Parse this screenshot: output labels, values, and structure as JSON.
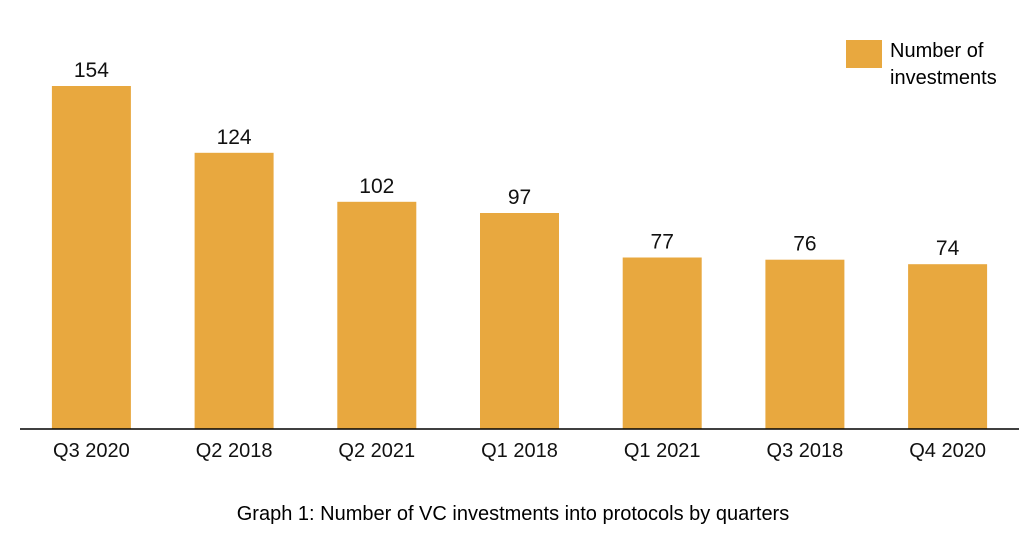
{
  "chart_data": {
    "type": "bar",
    "categories": [
      "Q3 2020",
      "Q2 2018",
      "Q2 2021",
      "Q1 2018",
      "Q1 2021",
      "Q3 2018",
      "Q4 2020"
    ],
    "series": [
      {
        "name": "Number of investments",
        "values": [
          154,
          124,
          102,
          97,
          77,
          76,
          74
        ]
      }
    ],
    "value_labels": [
      "154",
      "124",
      "102",
      "97",
      "77",
      "76",
      "74"
    ],
    "title": "",
    "xlabel": "",
    "ylabel": "",
    "ylim": [
      0,
      154
    ],
    "grid": false,
    "legend_position": "top-right",
    "bar_color": "#E8A83F",
    "axis_color": "#000000"
  },
  "caption": "Graph 1: Number of VC investments into protocols by quarters"
}
